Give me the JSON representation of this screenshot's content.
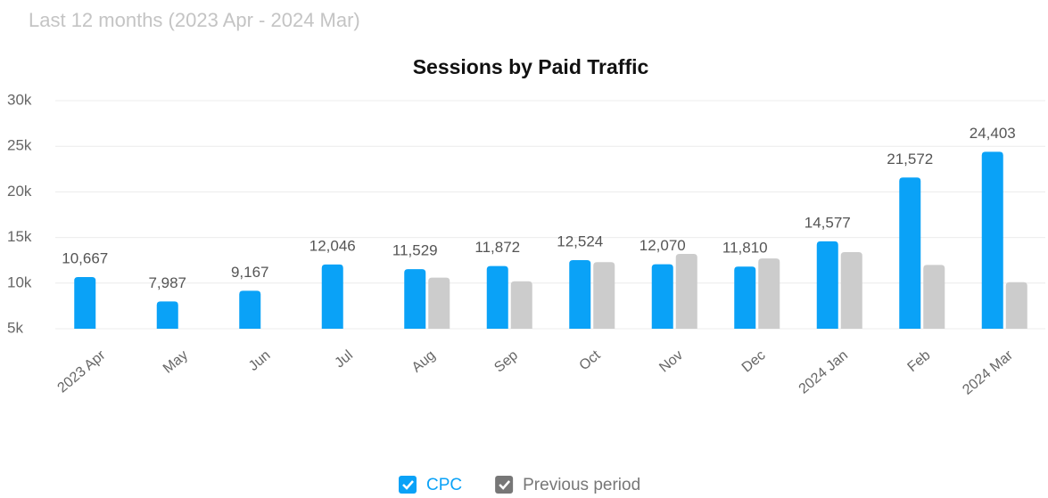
{
  "subtitle": "Last 12 months (2023 Apr - 2024 Mar)",
  "chart_data": {
    "type": "bar",
    "title": "Sessions by Paid Traffic",
    "categories": [
      "2023 Apr",
      "May",
      "Jun",
      "Jul",
      "Aug",
      "Sep",
      "Oct",
      "Nov",
      "Dec",
      "2024 Jan",
      "Feb",
      "2024 Mar"
    ],
    "series": [
      {
        "name": "CPC",
        "color": "#0aa2f7",
        "values": [
          10667,
          7987,
          9167,
          12046,
          11529,
          11872,
          12524,
          12070,
          11810,
          14577,
          21572,
          24403
        ],
        "value_labels": [
          "10,667",
          "7,987",
          "9,167",
          "12,046",
          "11,529",
          "11,872",
          "12,524",
          "12,070",
          "11,810",
          "14,577",
          "21,572",
          "24,403"
        ]
      },
      {
        "name": "Previous period",
        "color": "#cccccc",
        "values": [
          null,
          null,
          null,
          null,
          10600,
          10200,
          12300,
          13200,
          12700,
          13400,
          12000,
          10100
        ]
      }
    ],
    "ylim": [
      5000,
      30000
    ],
    "yticks": [
      {
        "value": 5000,
        "label": "5k"
      },
      {
        "value": 10000,
        "label": "10k"
      },
      {
        "value": 15000,
        "label": "15k"
      },
      {
        "value": 20000,
        "label": "20k"
      },
      {
        "value": 25000,
        "label": "25k"
      },
      {
        "value": 30000,
        "label": "30k"
      }
    ],
    "grid": true
  }
}
